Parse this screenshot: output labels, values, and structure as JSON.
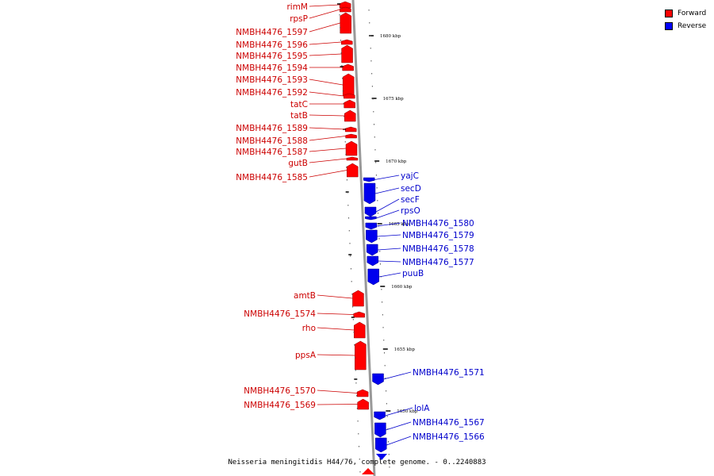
{
  "caption": "Neisseria meningitidis H44/76, complete genome. - 0..2240883",
  "legend": {
    "items": [
      {
        "label": "Forward",
        "color": "#ff0000"
      },
      {
        "label": "Reverse",
        "color": "#0000ff"
      }
    ]
  },
  "colors": {
    "forward_fill": "#ff0000",
    "forward_label": "#cc0000",
    "reverse_fill": "#0000ee",
    "reverse_label": "#0000cc",
    "backbone": "#999999"
  },
  "scale_ticks": [
    "1680 kbp",
    "1675 kbp",
    "1670 kbp",
    "1665 kbp",
    "1660 kbp",
    "1655 kbp",
    "1650 kbp"
  ],
  "forward_genes": [
    "rimM",
    "rpsP",
    "NMBH4476_1597",
    "NMBH4476_1596",
    "NMBH4476_1595",
    "NMBH4476_1594",
    "NMBH4476_1593",
    "NMBH4476_1592",
    "tatC",
    "tatB",
    "NMBH4476_1589",
    "NMBH4476_1588",
    "NMBH4476_1587",
    "gutB",
    "NMBH4476_1585",
    "amtB",
    "NMBH4476_1574",
    "rho",
    "ppsA",
    "NMBH4476_1570",
    "NMBH4476_1569"
  ],
  "reverse_genes": [
    "yajC",
    "secD",
    "secF",
    "rpsO",
    "NMBH4476_1580",
    "NMBH4476_1579",
    "NMBH4476_1578",
    "NMBH4476_1577",
    "puuB",
    "NMBH4476_1571",
    "lolA",
    "NMBH4476_1567",
    "NMBH4476_1566"
  ]
}
